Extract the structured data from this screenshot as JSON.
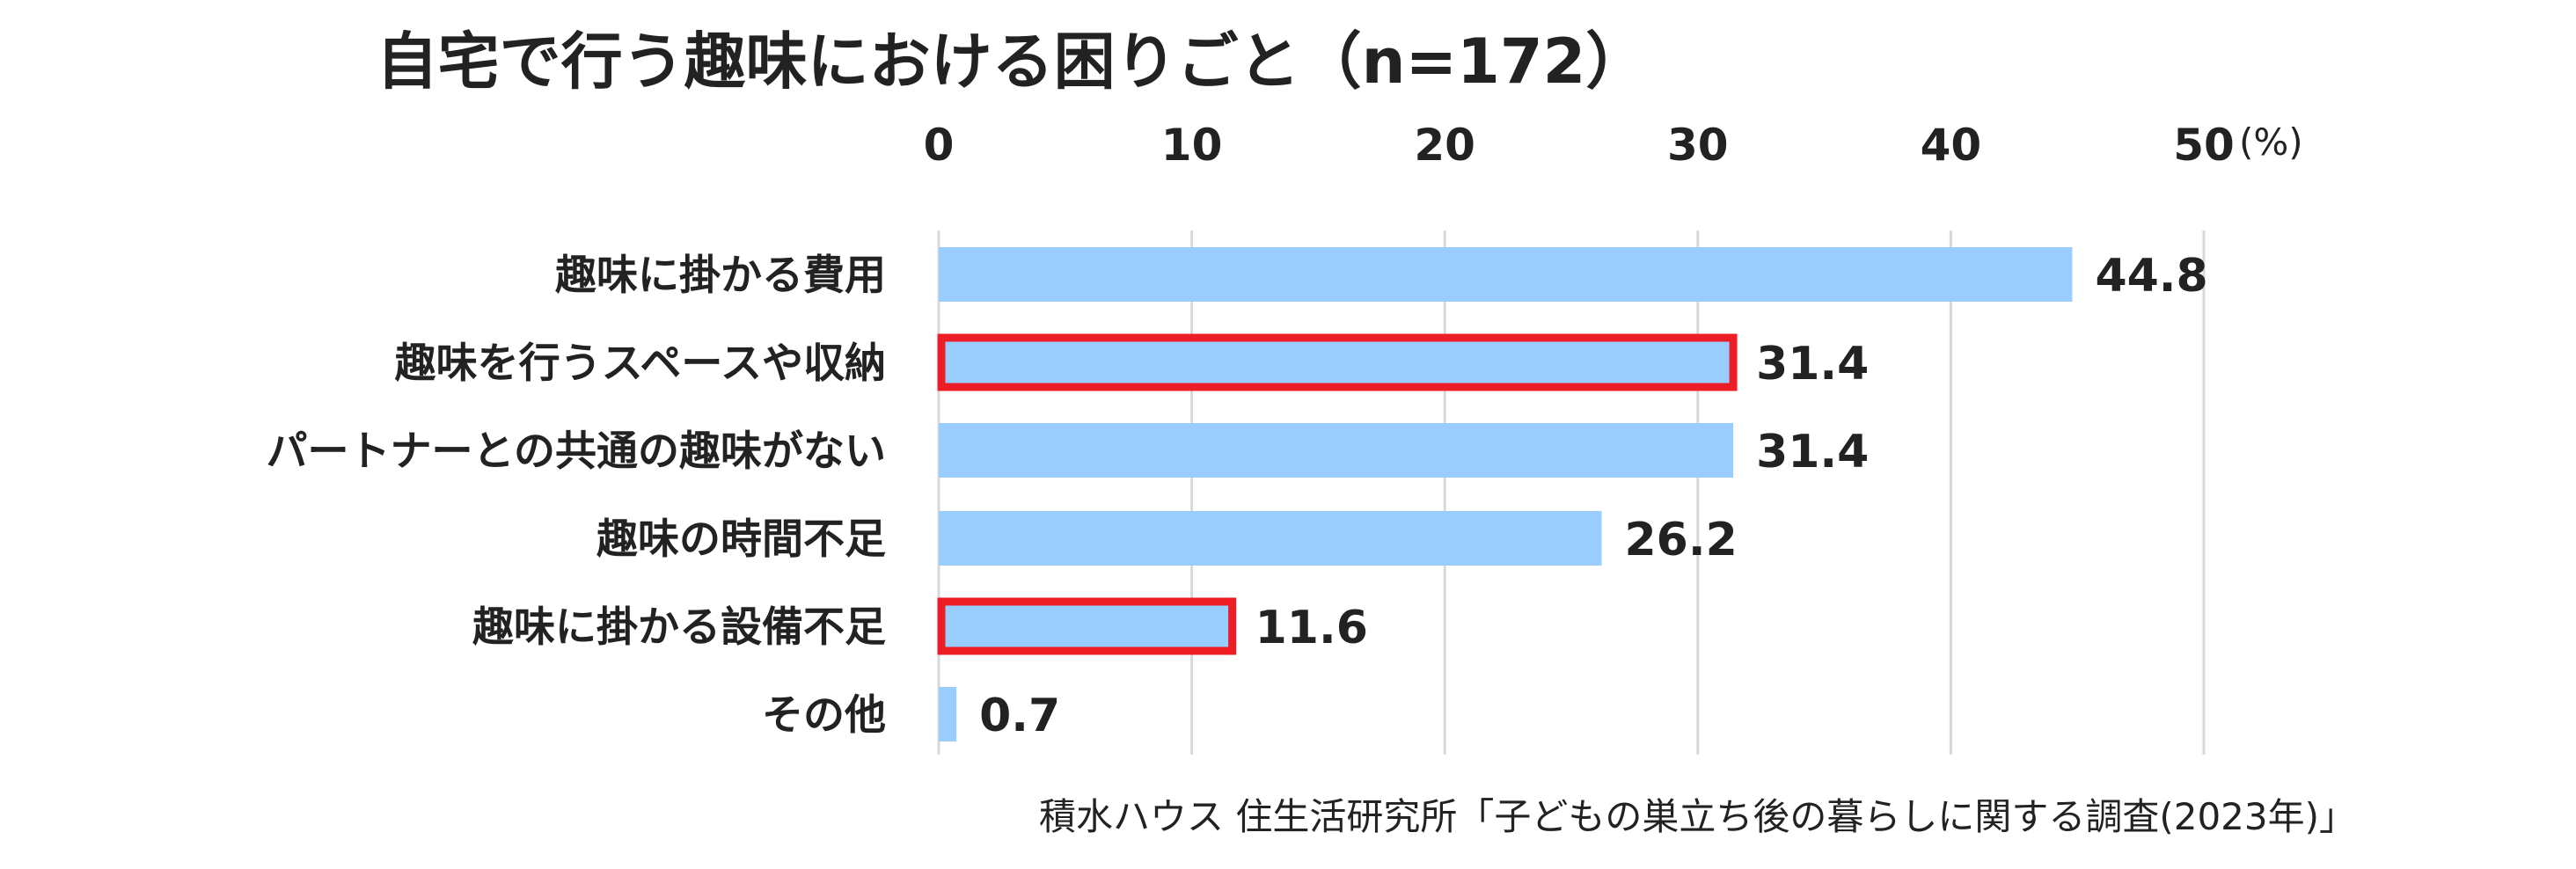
{
  "chart_data": {
    "type": "bar",
    "orientation": "horizontal",
    "title": "自宅で行う趣味における困りごと（n=172）",
    "unit": "(%)",
    "categories": [
      "趣味に掛かる費用",
      "趣味を行うスペースや収納",
      "パートナーとの共通の趣味がない",
      "趣味の時間不足",
      "趣味に掛かる設備不足",
      "その他"
    ],
    "values": [
      44.8,
      31.4,
      31.4,
      26.2,
      11.6,
      0.7
    ],
    "value_labels": [
      "44.8",
      "31.4",
      "31.4",
      "26.2",
      "11.6",
      "0.7"
    ],
    "highlighted": [
      false,
      true,
      false,
      false,
      true,
      false
    ],
    "xlim": [
      0,
      50
    ],
    "ticks": [
      0,
      10,
      20,
      30,
      40,
      50
    ],
    "tick_labels": [
      "0",
      "10",
      "20",
      "30",
      "40",
      "50"
    ],
    "axis_position": "top",
    "grid": true,
    "bar_color": "#99ccff",
    "highlight_color": "#ee1c25",
    "grid_color": "#d9d9d9"
  },
  "source": "積水ハウス 住生活研究所「子どもの巣立ち後の暮らしに関する調査(2023年)」"
}
